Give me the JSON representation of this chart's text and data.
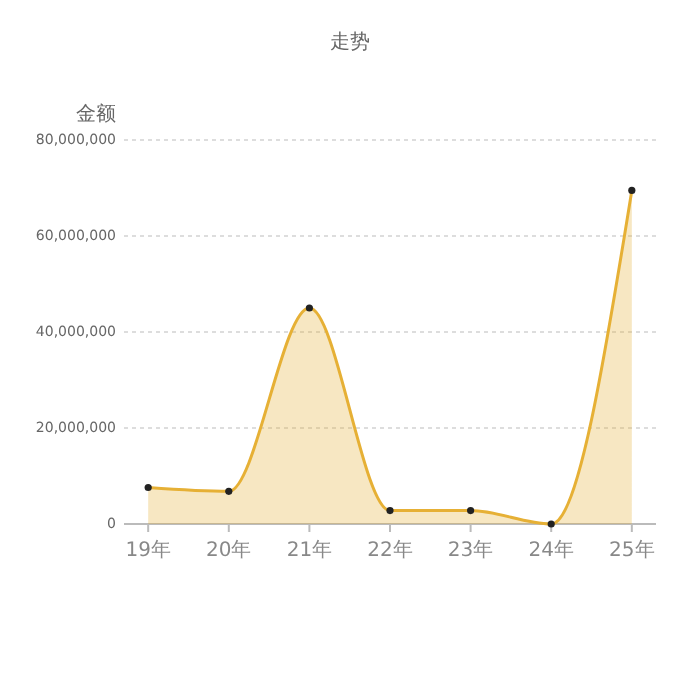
{
  "chart_data": {
    "type": "area",
    "title": "走势",
    "ylabel": "金额",
    "categories": [
      "19年",
      "20年",
      "21年",
      "22年",
      "23年",
      "24年",
      "25年"
    ],
    "series": [
      {
        "color": "#e6b035",
        "values": [
          7600000,
          6800000,
          45000000,
          2800000,
          2800000,
          0,
          69500000
        ]
      }
    ],
    "ylim": [
      0,
      80000000
    ],
    "yticks": [
      {
        "value": 0,
        "label": "0"
      },
      {
        "value": 20000000,
        "label": "20,000,000"
      },
      {
        "value": 40000000,
        "label": "40,000,000"
      },
      {
        "value": 60000000,
        "label": "60,000,000"
      },
      {
        "value": 80000000,
        "label": "80,000,000"
      }
    ],
    "grid": "y",
    "marker": "circle"
  }
}
